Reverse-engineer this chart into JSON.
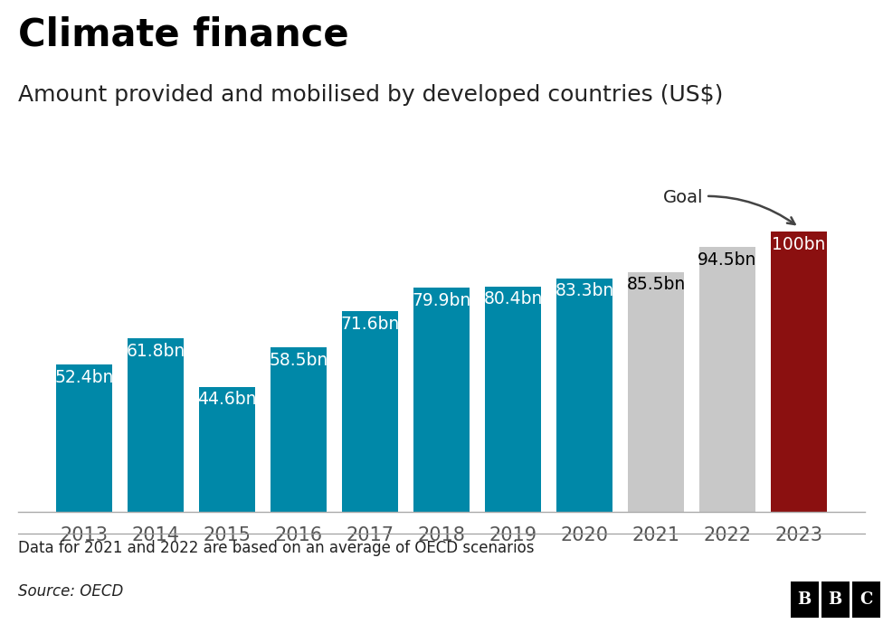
{
  "title": "Climate finance",
  "subtitle": "Amount provided and mobilised by developed countries (US$)",
  "categories": [
    "2013",
    "2014",
    "2015",
    "2016",
    "2017",
    "2018",
    "2019",
    "2020",
    "2021",
    "2022",
    "2023"
  ],
  "values": [
    52.4,
    61.8,
    44.6,
    58.5,
    71.6,
    79.9,
    80.4,
    83.3,
    85.5,
    94.5,
    100
  ],
  "labels": [
    "52.4bn",
    "61.8bn",
    "44.6bn",
    "58.5bn",
    "71.6bn",
    "79.9bn",
    "80.4bn",
    "83.3bn",
    "85.5bn",
    "94.5bn",
    "100bn"
  ],
  "bar_colors": [
    "#0088a8",
    "#0088a8",
    "#0088a8",
    "#0088a8",
    "#0088a8",
    "#0088a8",
    "#0088a8",
    "#0088a8",
    "#c8c8c8",
    "#c8c8c8",
    "#8b1010"
  ],
  "label_colors": [
    "white",
    "white",
    "white",
    "white",
    "white",
    "white",
    "white",
    "white",
    "black",
    "black",
    "white"
  ],
  "footnote": "Data for 2021 and 2022 are based on an average of OECD scenarios",
  "source": "Source: OECD",
  "goal_annotation": "Goal",
  "background_color": "#ffffff",
  "title_fontsize": 30,
  "subtitle_fontsize": 18,
  "bar_label_fontsize": 13.5,
  "axis_label_fontsize": 15,
  "footnote_fontsize": 12,
  "source_fontsize": 12,
  "ylim": [
    0,
    118
  ]
}
